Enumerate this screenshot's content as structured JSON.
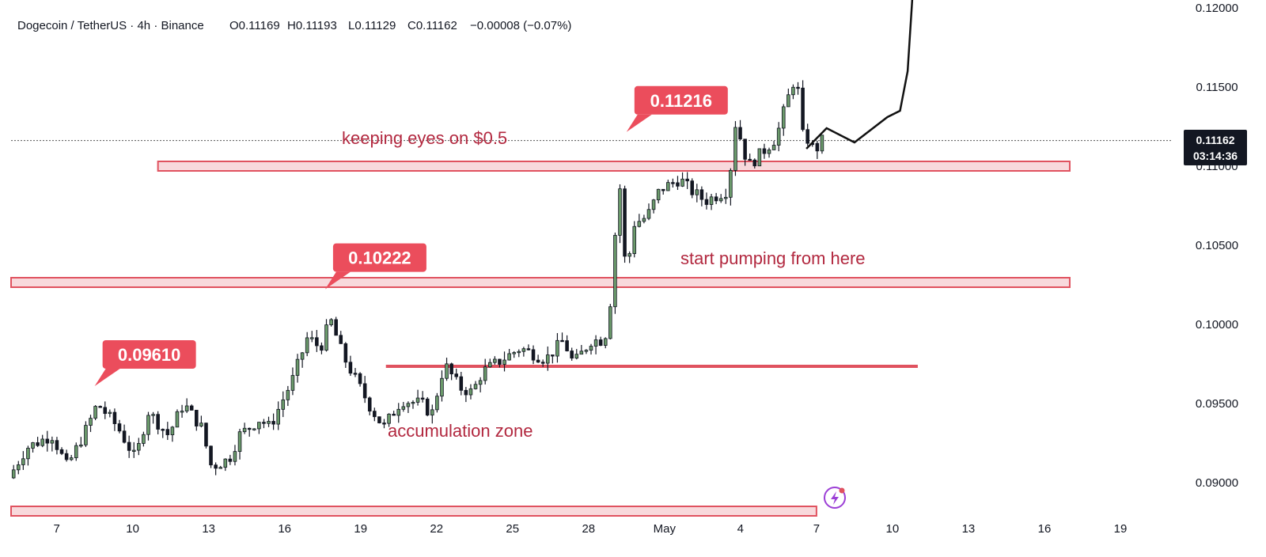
{
  "header": {
    "symbol": "Dogecoin / TetherUS · 4h · Binance",
    "open": "O0.11169",
    "high": "H0.11193",
    "low": "L0.11129",
    "close": "C0.11162",
    "change": "−0.00008 (−0.07%)"
  },
  "price_tag": {
    "price": "0.11162",
    "countdown": "03:14:36",
    "color": "#131722"
  },
  "colors": {
    "up": "#6b9a6b",
    "down": "#131722",
    "zone": "#e0525f",
    "callout": "#eb4d5c",
    "annotation": "#b2283f"
  },
  "annotations": {
    "keeping_eyes": "keeping eyes on $0.5",
    "start_pumping": "start pumping from here",
    "accumulation": "accumulation zone"
  },
  "callouts": [
    "0.09610",
    "0.10222",
    "0.11216"
  ],
  "icons": {
    "bottom_right": "lightning-circle-icon"
  },
  "chart_data": {
    "type": "candlestick",
    "title": "Dogecoin / TetherUS · 4h · Binance",
    "y_ticks": [
      "0.12000",
      "0.11500",
      "0.11000",
      "0.10500",
      "0.10000",
      "0.09500",
      "0.09000"
    ],
    "ylim": [
      0.0885,
      0.1205
    ],
    "x_ticks": [
      "7",
      "10",
      "13",
      "16",
      "19",
      "22",
      "25",
      "28",
      "May",
      "4",
      "7",
      "10",
      "13",
      "16",
      "19"
    ],
    "x_tick_days": [
      7,
      10,
      13,
      16,
      19,
      22,
      25,
      28,
      31,
      34,
      37,
      40,
      43,
      46,
      49
    ],
    "x_day_range": [
      5.2,
      51
    ],
    "last_price": 0.11162,
    "levels": [
      {
        "name": "resistance",
        "value": 0.11,
        "from_day": 11,
        "to_day": 47
      },
      {
        "name": "breakout",
        "value": 0.10265,
        "from_day": 5.2,
        "to_day": 47
      },
      {
        "name": "support",
        "value": 0.09735,
        "from_day": 20,
        "to_day": 41
      },
      {
        "name": "bottom",
        "value": 0.0882,
        "from_day": 5.2,
        "to_day": 37
      }
    ],
    "callout_points": [
      {
        "label": "0.09610",
        "day": 8.5,
        "value": 0.0961
      },
      {
        "label": "0.10222",
        "day": 17.6,
        "value": 0.10222
      },
      {
        "label": "0.11216",
        "day": 29.5,
        "value": 0.11216
      }
    ],
    "projection": [
      [
        36.6,
        0.1111
      ],
      [
        37.4,
        0.1124
      ],
      [
        38.5,
        0.1115
      ],
      [
        39.8,
        0.1131
      ],
      [
        40.3,
        0.1135
      ],
      [
        40.6,
        0.116
      ],
      [
        40.8,
        0.121
      ]
    ],
    "anchors": [
      [
        5.3,
        0.0903
      ],
      [
        6.0,
        0.0922
      ],
      [
        7.0,
        0.093
      ],
      [
        7.6,
        0.091
      ],
      [
        8.4,
        0.0935
      ],
      [
        8.8,
        0.095
      ],
      [
        9.6,
        0.0935
      ],
      [
        10.3,
        0.0915
      ],
      [
        10.8,
        0.0945
      ],
      [
        11.6,
        0.093
      ],
      [
        12.2,
        0.095
      ],
      [
        12.9,
        0.0935
      ],
      [
        13.3,
        0.091
      ],
      [
        14.0,
        0.0915
      ],
      [
        14.4,
        0.093
      ],
      [
        15.2,
        0.094
      ],
      [
        15.6,
        0.0935
      ],
      [
        16.5,
        0.0965
      ],
      [
        17.1,
        0.0992
      ],
      [
        17.6,
        0.0985
      ],
      [
        18.0,
        0.1003
      ],
      [
        18.5,
        0.098
      ],
      [
        19.0,
        0.0965
      ],
      [
        19.6,
        0.0947
      ],
      [
        20.1,
        0.0935
      ],
      [
        20.8,
        0.0952
      ],
      [
        21.6,
        0.095
      ],
      [
        22.0,
        0.0943
      ],
      [
        22.5,
        0.0975
      ],
      [
        23.1,
        0.096
      ],
      [
        23.6,
        0.0957
      ],
      [
        24.0,
        0.097
      ],
      [
        25.0,
        0.098
      ],
      [
        25.5,
        0.0985
      ],
      [
        26.5,
        0.0978
      ],
      [
        27.2,
        0.099
      ],
      [
        27.6,
        0.0975
      ],
      [
        28.3,
        0.099
      ],
      [
        28.8,
        0.099
      ],
      [
        29.0,
        0.1003
      ],
      [
        29.4,
        0.1093
      ],
      [
        29.7,
        0.1023
      ],
      [
        29.9,
        0.1063
      ],
      [
        30.5,
        0.1068
      ],
      [
        31.0,
        0.1085
      ],
      [
        31.8,
        0.1092
      ],
      [
        32.2,
        0.1085
      ],
      [
        32.8,
        0.1078
      ],
      [
        33.7,
        0.1085
      ],
      [
        34.0,
        0.1128
      ],
      [
        34.5,
        0.11
      ],
      [
        35.0,
        0.1108
      ],
      [
        35.6,
        0.1118
      ],
      [
        36.0,
        0.114
      ],
      [
        36.4,
        0.1159
      ],
      [
        36.6,
        0.112
      ],
      [
        37.0,
        0.1115
      ],
      [
        37.1,
        0.1105
      ],
      [
        37.3,
        0.1116
      ]
    ]
  }
}
